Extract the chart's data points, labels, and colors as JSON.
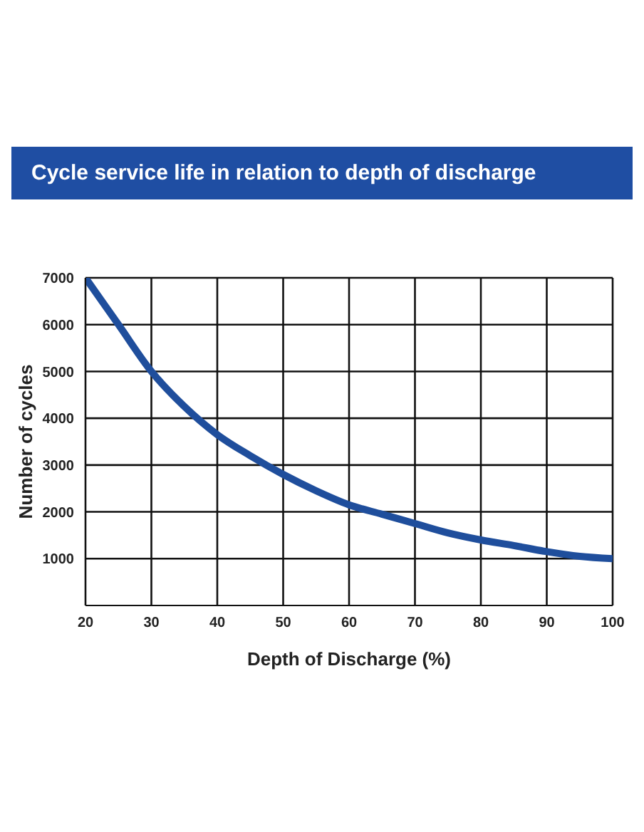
{
  "chart_data": {
    "type": "line",
    "title": "Cycle service life in relation to depth of discharge",
    "xlabel": "Depth of Discharge (%)",
    "ylabel": "Number of cycles",
    "x": [
      20,
      25,
      30,
      35,
      40,
      45,
      50,
      55,
      60,
      65,
      70,
      75,
      80,
      85,
      90,
      95,
      100
    ],
    "series": [
      {
        "color": "#1f4e9c",
        "values": [
          7000,
          6000,
          5000,
          4250,
          3650,
          3200,
          2800,
          2450,
          2150,
          1950,
          1750,
          1550,
          1400,
          1280,
          1150,
          1050,
          1000
        ]
      }
    ],
    "xlim": [
      20,
      100
    ],
    "xticks": [
      20,
      30,
      40,
      50,
      60,
      70,
      80,
      90,
      100
    ],
    "ylim": [
      0,
      7000
    ],
    "yticks": [
      1000,
      2000,
      3000,
      4000,
      5000,
      6000,
      7000
    ],
    "grid": true,
    "marker": "none",
    "line_style": "solid",
    "legend": false
  }
}
